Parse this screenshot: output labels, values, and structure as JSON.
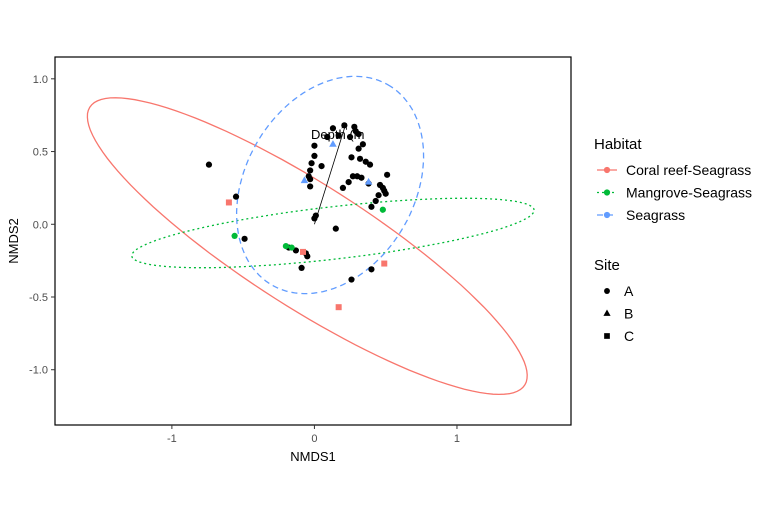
{
  "chart_data": {
    "type": "scatter",
    "xlabel": "NMDS1",
    "ylabel": "NMDS2",
    "xlim": [
      -1.82,
      1.8
    ],
    "ylim": [
      -1.38,
      1.15
    ],
    "xticks": [
      -1,
      0,
      1
    ],
    "xtick_labels": [
      "-1",
      "0",
      "1"
    ],
    "yticks": [
      -1.0,
      -0.5,
      0.0,
      0.5,
      1.0
    ],
    "ytick_labels": [
      "-1.0",
      "-0.5",
      "0.0",
      "0.5",
      "1.0"
    ],
    "grid": false,
    "legend_position": "right",
    "colors": {
      "Coral reef-Seagrass": "#F8766D",
      "Mangrove-Seagrass": "#00BA38",
      "Seagrass": "#619CFF",
      "Site": "#000000"
    },
    "legends": {
      "habitat": {
        "title": "Habitat",
        "entries": [
          {
            "label": "Coral reef-Seagrass",
            "color": "#F8766D",
            "linetype": "solid"
          },
          {
            "label": "Mangrove-Seagrass",
            "color": "#00BA38",
            "linetype": "dotted"
          },
          {
            "label": "Seagrass",
            "color": "#619CFF",
            "linetype": "dashed"
          }
        ]
      },
      "site": {
        "title": "Site",
        "entries": [
          {
            "label": "A",
            "shape": "circle"
          },
          {
            "label": "B",
            "shape": "triangle"
          },
          {
            "label": "C",
            "shape": "square"
          }
        ]
      }
    },
    "ellipses": [
      {
        "habitat": "Coral reef-Seagrass",
        "cx": -0.05,
        "cy": -0.15,
        "a": 1.8,
        "b": 0.425,
        "angle_deg": -32,
        "linetype": "solid"
      },
      {
        "habitat": "Mangrove-Seagrass",
        "cx": 0.13,
        "cy": -0.06,
        "a": 1.42,
        "b": 0.18,
        "angle_deg": 6.4,
        "linetype": "dotted"
      },
      {
        "habitat": "Seagrass",
        "cx": 0.11,
        "cy": 0.27,
        "a": 0.8,
        "b": 0.59,
        "angle_deg": 58,
        "linetype": "dashed"
      }
    ],
    "vector": {
      "label": "Depth (m",
      "x0": 0,
      "y0": 0,
      "x1": 0.22,
      "y1": 0.69
    },
    "series": [
      {
        "name": "Seagrass",
        "shape": "circle",
        "color": "#000000",
        "points": [
          [
            -0.74,
            0.41
          ],
          [
            0.0,
            0.54
          ],
          [
            0.09,
            0.6
          ],
          [
            0.13,
            0.66
          ],
          [
            0.17,
            0.61
          ],
          [
            0.21,
            0.68
          ],
          [
            0.25,
            0.6
          ],
          [
            0.28,
            0.67
          ],
          [
            0.29,
            0.64
          ],
          [
            0.31,
            0.62
          ],
          [
            0.34,
            0.55
          ],
          [
            0.31,
            0.52
          ],
          [
            0.26,
            0.46
          ],
          [
            0.32,
            0.45
          ],
          [
            0.36,
            0.43
          ],
          [
            0.39,
            0.41
          ],
          [
            0.0,
            0.47
          ],
          [
            -0.02,
            0.42
          ],
          [
            -0.03,
            0.37
          ],
          [
            -0.04,
            0.33
          ],
          [
            -0.03,
            0.31
          ],
          [
            -0.03,
            0.26
          ],
          [
            0.05,
            0.4
          ],
          [
            0.2,
            0.25
          ],
          [
            0.24,
            0.29
          ],
          [
            0.27,
            0.33
          ],
          [
            0.3,
            0.33
          ],
          [
            0.33,
            0.32
          ],
          [
            0.38,
            0.28
          ],
          [
            0.46,
            0.27
          ],
          [
            0.48,
            0.25
          ],
          [
            0.49,
            0.23
          ],
          [
            0.5,
            0.21
          ],
          [
            0.51,
            0.34
          ],
          [
            0.45,
            0.2
          ],
          [
            0.4,
            0.12
          ],
          [
            0.43,
            0.16
          ],
          [
            0.0,
            0.04
          ],
          [
            0.01,
            0.06
          ],
          [
            0.15,
            -0.03
          ],
          [
            -0.55,
            0.19
          ],
          [
            -0.49,
            -0.1
          ],
          [
            -0.18,
            -0.16
          ],
          [
            -0.13,
            -0.18
          ],
          [
            -0.05,
            -0.22
          ],
          [
            -0.09,
            -0.3
          ],
          [
            0.4,
            -0.31
          ],
          [
            0.26,
            -0.38
          ],
          [
            -0.06,
            -0.2
          ]
        ]
      },
      {
        "name": "Mangrove-Seagrass",
        "shape": "circle",
        "color": "#00BA38",
        "points": [
          [
            -0.56,
            -0.08
          ],
          [
            -0.2,
            -0.15
          ],
          [
            -0.16,
            -0.16
          ],
          [
            0.48,
            0.1
          ]
        ]
      },
      {
        "name": "Seagrass",
        "shape": "triangle",
        "color": "#619CFF",
        "points": [
          [
            0.13,
            0.55
          ],
          [
            0.38,
            0.29
          ],
          [
            -0.07,
            0.3
          ]
        ]
      },
      {
        "name": "Coral reef-Seagrass",
        "shape": "square",
        "color": "#F8766D",
        "points": [
          [
            -0.6,
            0.15
          ],
          [
            0.49,
            -0.27
          ],
          [
            0.17,
            -0.57
          ],
          [
            -0.08,
            -0.19
          ]
        ]
      }
    ]
  }
}
